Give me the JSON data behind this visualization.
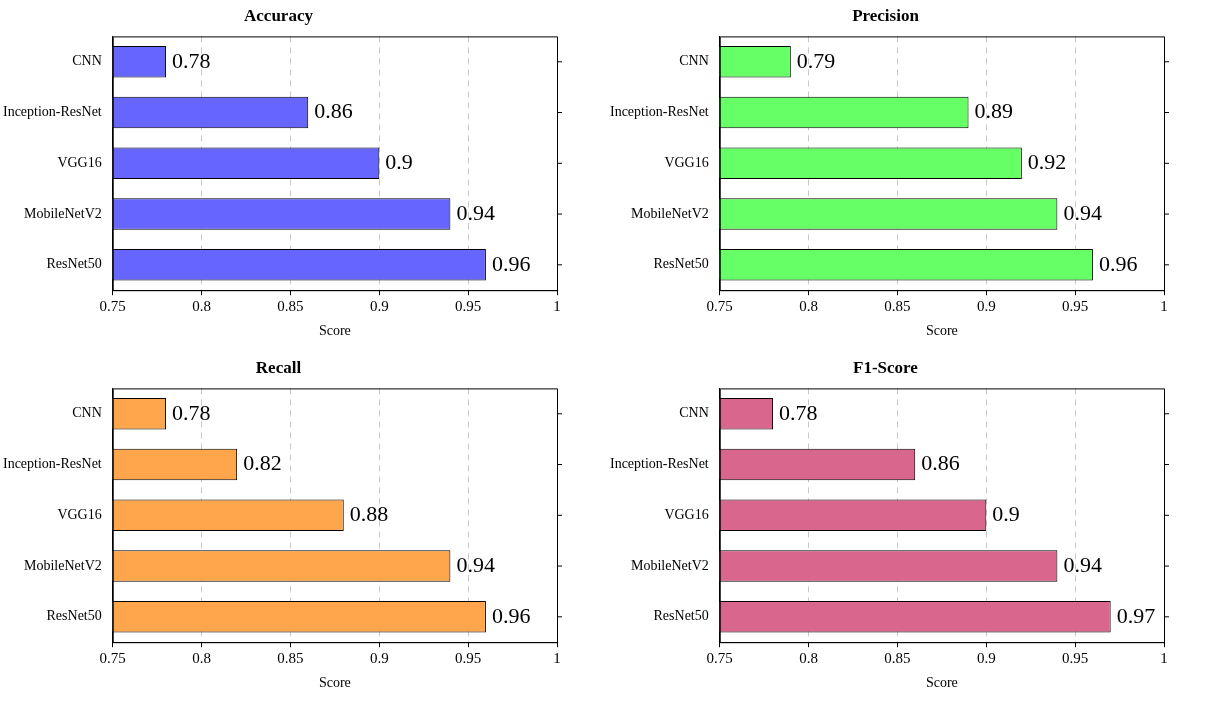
{
  "chart_data": [
    {
      "type": "bar",
      "orientation": "horizontal",
      "title": "Accuracy",
      "xlabel": "Score",
      "categories": [
        "CNN",
        "Inception-ResNet",
        "VGG16",
        "MobileNetV2",
        "ResNet50"
      ],
      "values": [
        0.78,
        0.86,
        0.9,
        0.94,
        0.96
      ],
      "color": "#6666ff",
      "xlim": [
        0.75,
        1
      ],
      "xticks": [
        0.75,
        0.8,
        0.85,
        0.9,
        0.95,
        1
      ],
      "grid": "x",
      "data_labels": true
    },
    {
      "type": "bar",
      "orientation": "horizontal",
      "title": "Precision",
      "xlabel": "Score",
      "categories": [
        "CNN",
        "Inception-ResNet",
        "VGG16",
        "MobileNetV2",
        "ResNet50"
      ],
      "values": [
        0.79,
        0.89,
        0.92,
        0.94,
        0.96
      ],
      "color": "#66ff66",
      "xlim": [
        0.75,
        1
      ],
      "xticks": [
        0.75,
        0.8,
        0.85,
        0.9,
        0.95,
        1
      ],
      "grid": "x",
      "data_labels": true
    },
    {
      "type": "bar",
      "orientation": "horizontal",
      "title": "Recall",
      "xlabel": "Score",
      "categories": [
        "CNN",
        "Inception-ResNet",
        "VGG16",
        "MobileNetV2",
        "ResNet50"
      ],
      "values": [
        0.78,
        0.82,
        0.88,
        0.94,
        0.96
      ],
      "color": "#ffa64d",
      "xlim": [
        0.75,
        1
      ],
      "xticks": [
        0.75,
        0.8,
        0.85,
        0.9,
        0.95,
        1
      ],
      "grid": "x",
      "data_labels": true
    },
    {
      "type": "bar",
      "orientation": "horizontal",
      "title": "F1-Score",
      "xlabel": "Score",
      "categories": [
        "CNN",
        "Inception-ResNet",
        "VGG16",
        "MobileNetV2",
        "ResNet50"
      ],
      "values": [
        0.78,
        0.86,
        0.9,
        0.94,
        0.97
      ],
      "color": "#d9668c",
      "xlim": [
        0.75,
        1
      ],
      "xticks": [
        0.75,
        0.8,
        0.85,
        0.9,
        0.95,
        1
      ],
      "grid": "x",
      "data_labels": true
    }
  ]
}
